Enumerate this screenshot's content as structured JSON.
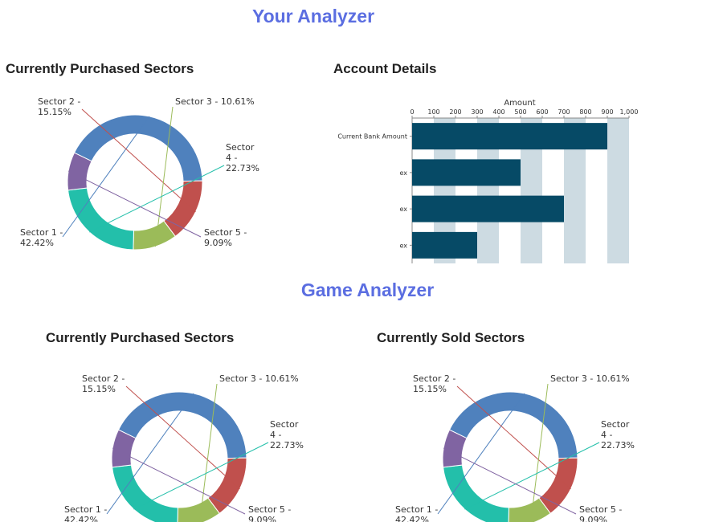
{
  "your_analyzer": {
    "title": "Your Analyzer",
    "purchased_title": "Currently Purchased Sectors",
    "account_title": "Account Details"
  },
  "game_analyzer": {
    "title": "Game Analyzer",
    "purchased_title": "Currently Purchased Sectors",
    "sold_title": "Currently Sold Sectors"
  },
  "chart_data": [
    {
      "type": "pie",
      "title": "Currently Purchased Sectors",
      "categories": [
        "Sector 1",
        "Sector 2",
        "Sector 3",
        "Sector 4",
        "Sector 5"
      ],
      "values": [
        42.42,
        15.15,
        10.61,
        22.73,
        9.09
      ],
      "colors": [
        "#4f81bd",
        "#c0504d",
        "#9bbb59",
        "#23bfaa",
        "#8064a2"
      ],
      "labels": [
        "Sector 1 - 42.42%",
        "Sector 2 - 15.15%",
        "Sector 3 - 10.61%",
        "Sector 4 - 22.73%",
        "Sector 5 - 9.09%"
      ]
    },
    {
      "type": "bar",
      "orientation": "horizontal",
      "title": "Account Details",
      "categories": [
        "Current Bank Amount",
        "ex",
        "ex",
        "ex"
      ],
      "values": [
        900,
        500,
        700,
        300
      ],
      "xlabel": "Amount",
      "xlim": [
        0,
        1000
      ],
      "ticks": [
        "0",
        "100",
        "200",
        "300",
        "400",
        "500",
        "600",
        "700",
        "800",
        "900",
        "1,000"
      ],
      "bar_color": "#064a66",
      "stripe_color": "#cddbe2"
    },
    {
      "type": "pie",
      "title": "Currently Purchased Sectors",
      "categories": [
        "Sector 1",
        "Sector 2",
        "Sector 3",
        "Sector 4",
        "Sector 5"
      ],
      "values": [
        42.42,
        15.15,
        10.61,
        22.73,
        9.09
      ],
      "colors": [
        "#4f81bd",
        "#c0504d",
        "#9bbb59",
        "#23bfaa",
        "#8064a2"
      ],
      "labels": [
        "Sector 1 - 42.42%",
        "Sector 2 - 15.15%",
        "Sector 3 - 10.61%",
        "Sector 4 - 22.73%",
        "Sector 5 - 9.09%"
      ]
    },
    {
      "type": "pie",
      "title": "Currently Sold Sectors",
      "categories": [
        "Sector 1",
        "Sector 2",
        "Sector 3",
        "Sector 4",
        "Sector 5"
      ],
      "values": [
        42.42,
        15.15,
        10.61,
        22.73,
        9.09
      ],
      "colors": [
        "#4f81bd",
        "#c0504d",
        "#9bbb59",
        "#23bfaa",
        "#8064a2"
      ],
      "labels": [
        "Sector 1 - 42.42%",
        "Sector 2 - 15.15%",
        "Sector 3 - 10.61%",
        "Sector 4 - 22.73%",
        "Sector 5 - 9.09%"
      ]
    }
  ]
}
